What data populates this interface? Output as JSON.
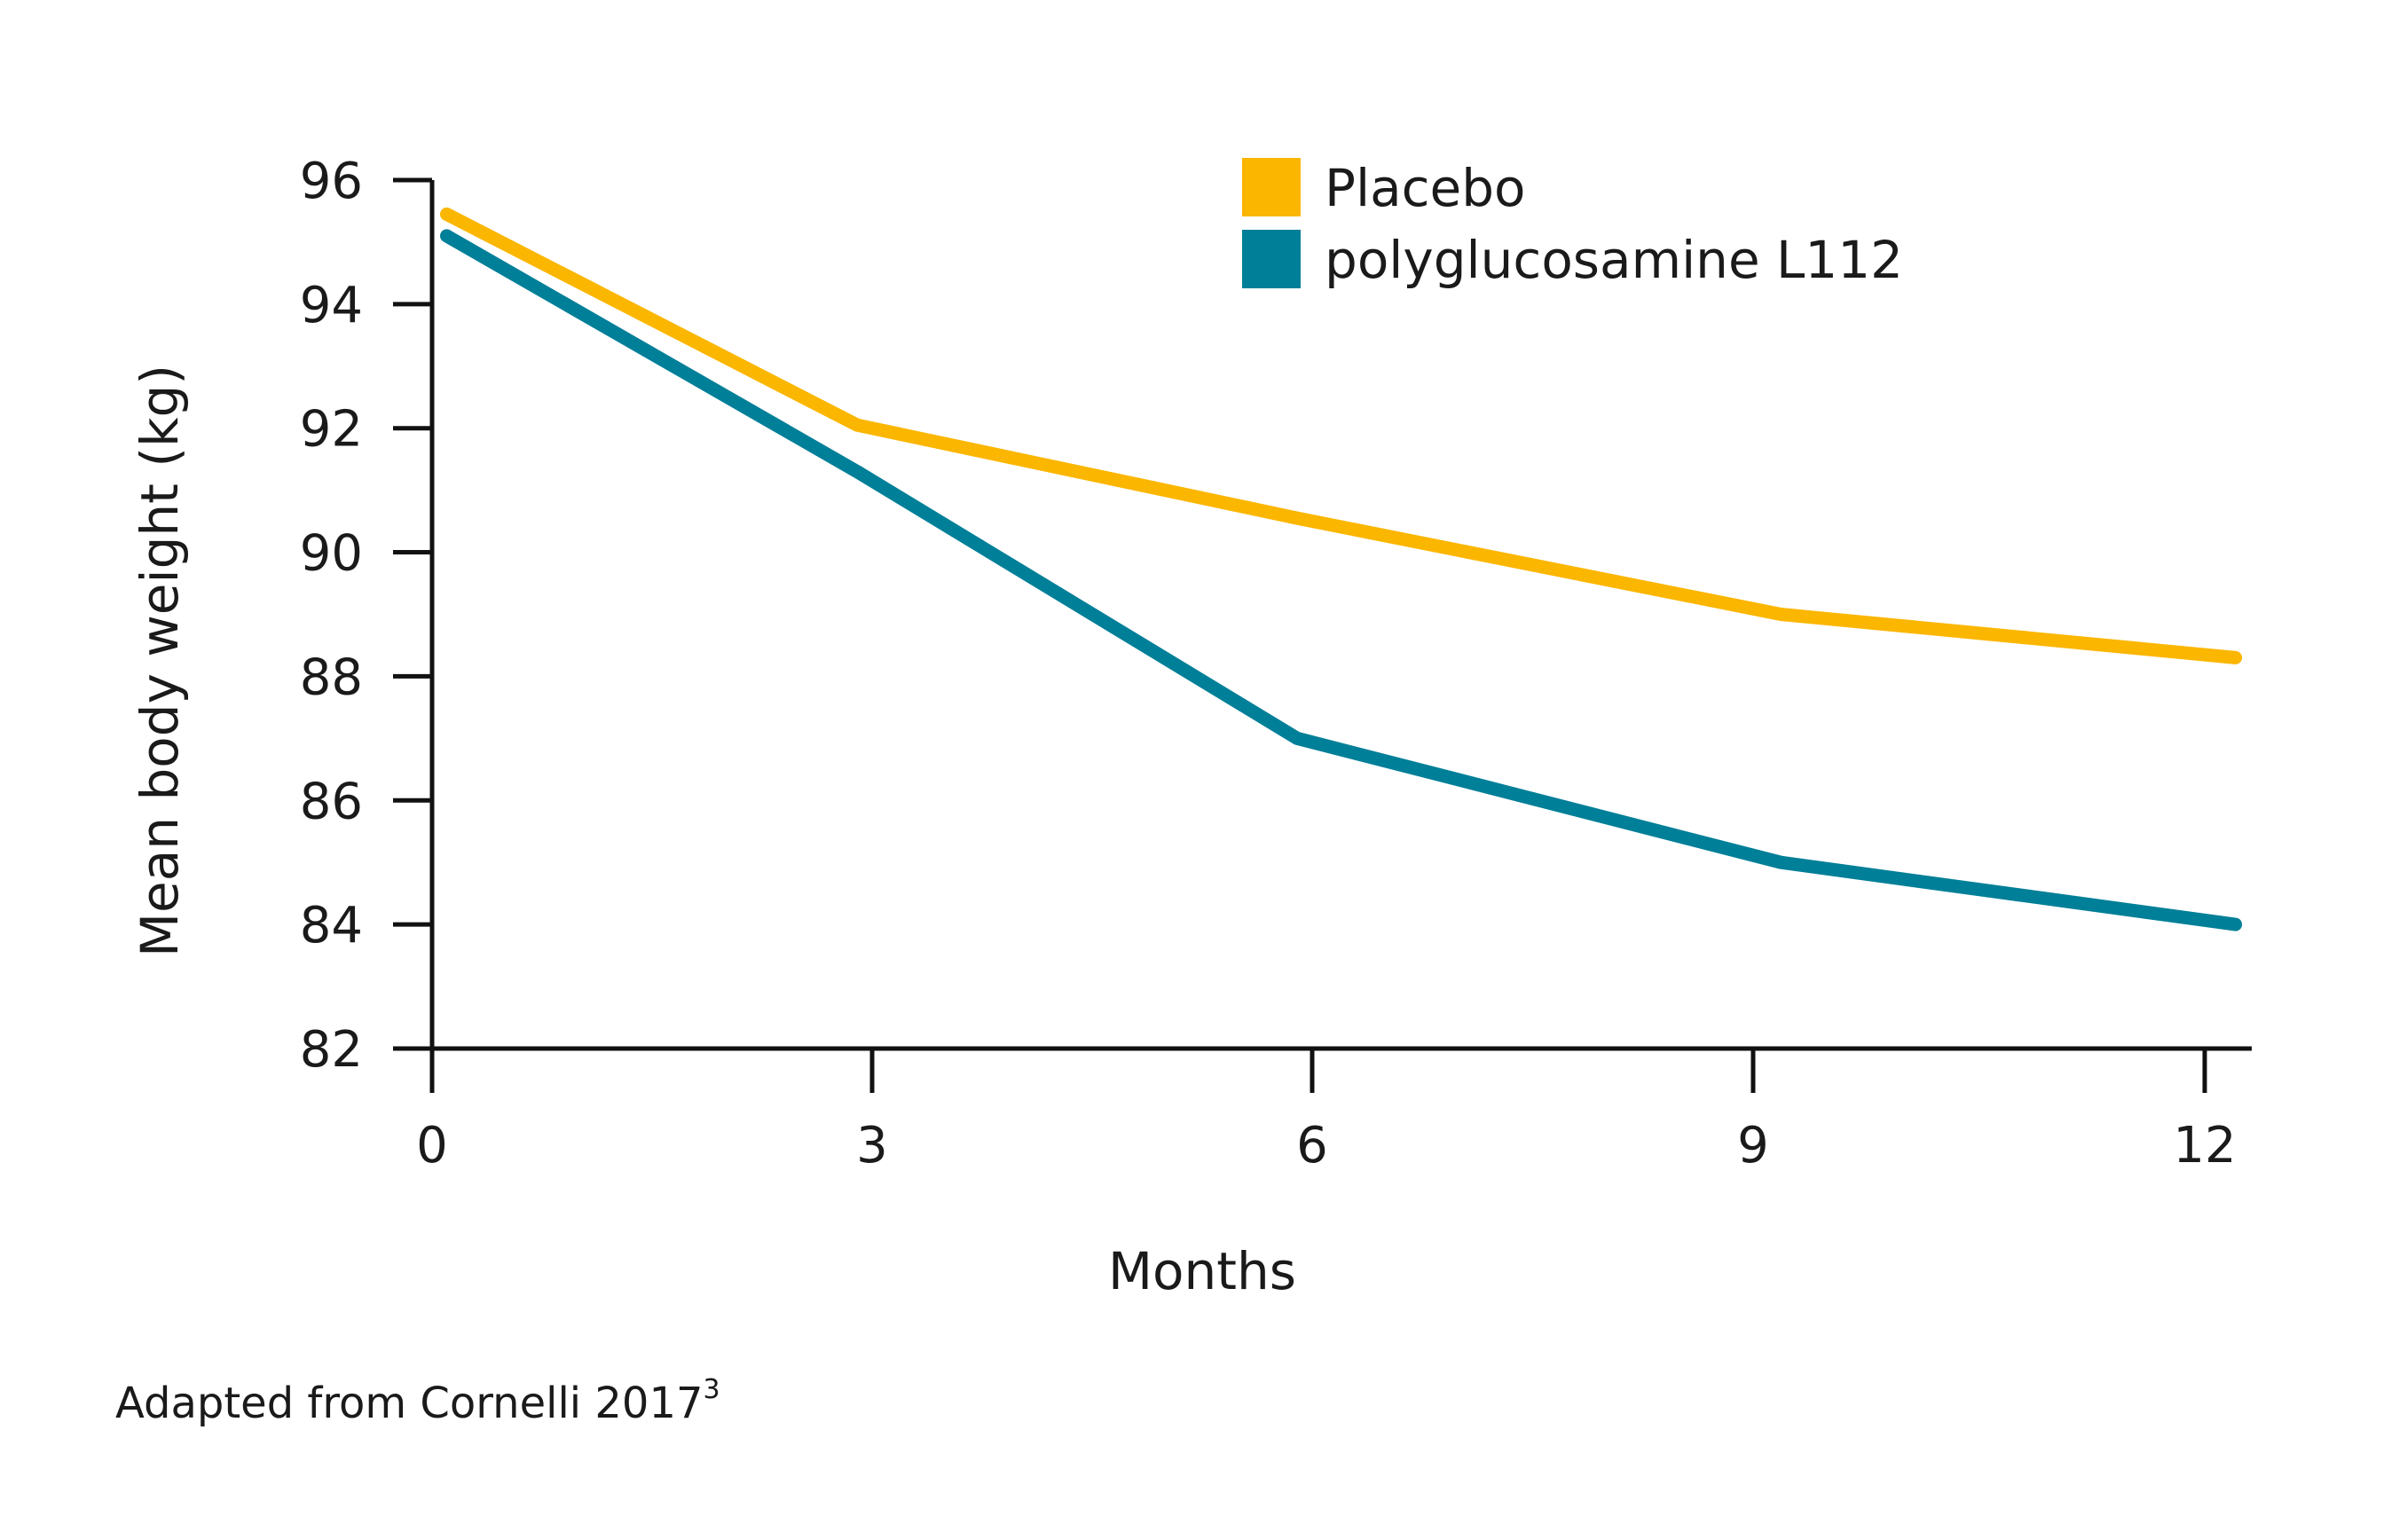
{
  "chart_data": {
    "type": "line",
    "x": [
      0,
      3,
      6,
      9,
      12
    ],
    "xticks": [
      "0",
      "3",
      "6",
      "9",
      "12"
    ],
    "yticks": [
      "82",
      "84",
      "86",
      "88",
      "90",
      "92",
      "94",
      "96"
    ],
    "xlim": [
      0,
      12
    ],
    "ylim": [
      82,
      96
    ],
    "xlabel": "Months",
    "ylabel": "Mean body weight (kg)",
    "legend_position": "top-right",
    "grid": false,
    "series": [
      {
        "name": "Placebo",
        "color": "#FBB600",
        "x": [
          0.1,
          2.9,
          5.9,
          9.2,
          12.3
        ],
        "values": [
          95.45,
          92.05,
          90.55,
          89.0,
          88.3
        ]
      },
      {
        "name": "polyglucosamine L112",
        "color": "#007F98",
        "x": [
          0.1,
          2.9,
          5.9,
          9.2,
          12.3
        ],
        "values": [
          95.1,
          91.3,
          87.0,
          85.0,
          84.0
        ]
      }
    ]
  },
  "source": {
    "text": "Adapted from Cornelli 2017",
    "superscript": "3"
  }
}
